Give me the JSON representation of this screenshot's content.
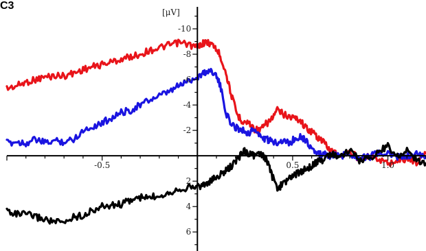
{
  "chart_data": {
    "type": "line",
    "panel_label": "C3",
    "ylabel": "[μV]",
    "xlabel": "",
    "xlim": [
      -1.0,
      1.2
    ],
    "ylim": [
      7.5,
      -12.0
    ],
    "y_axis_inverted": true,
    "x_ticks": [
      {
        "value": -0.5,
        "label": "-0.5"
      },
      {
        "value": 0.5,
        "label": "0.5"
      },
      {
        "value": 1.0,
        "label": "1.0"
      }
    ],
    "y_ticks": [
      {
        "value": -10,
        "label": "-10"
      },
      {
        "value": -8,
        "label": "-8"
      },
      {
        "value": -6,
        "label": "-6"
      },
      {
        "value": -4,
        "label": "-4"
      },
      {
        "value": -2,
        "label": "-2"
      },
      {
        "value": 2,
        "label": "2"
      },
      {
        "value": 4,
        "label": "4"
      },
      {
        "value": 6,
        "label": "6"
      }
    ],
    "grid": false,
    "series": [
      {
        "color": "#e8141a",
        "x": [
          -1.0,
          -0.95,
          -0.9,
          -0.85,
          -0.8,
          -0.75,
          -0.7,
          -0.65,
          -0.6,
          -0.55,
          -0.5,
          -0.45,
          -0.4,
          -0.35,
          -0.3,
          -0.25,
          -0.2,
          -0.15,
          -0.1,
          -0.05,
          0.0,
          0.03,
          0.06,
          0.09,
          0.12,
          0.15,
          0.18,
          0.21,
          0.24,
          0.27,
          0.3,
          0.33,
          0.36,
          0.39,
          0.42,
          0.45,
          0.48,
          0.51,
          0.54,
          0.57,
          0.6,
          0.63,
          0.66,
          0.7,
          0.75,
          0.8,
          0.85,
          0.9,
          0.95,
          1.0,
          1.05,
          1.1,
          1.15,
          1.2
        ],
        "values": [
          -5.3,
          -5.5,
          -5.8,
          -6.0,
          -6.2,
          -6.3,
          -6.3,
          -6.5,
          -6.8,
          -7.0,
          -7.2,
          -7.4,
          -7.6,
          -7.8,
          -8.0,
          -8.3,
          -8.5,
          -8.7,
          -8.9,
          -8.8,
          -8.5,
          -8.9,
          -8.9,
          -8.6,
          -7.9,
          -6.5,
          -4.7,
          -3.2,
          -2.7,
          -2.6,
          -2.1,
          -2.0,
          -2.5,
          -2.9,
          -3.6,
          -3.3,
          -3.1,
          -3.0,
          -2.8,
          -2.2,
          -1.9,
          -1.5,
          -1.1,
          -0.4,
          0.0,
          -0.3,
          0.2,
          -0.1,
          0.3,
          0.6,
          0.4,
          0.2,
          0.5,
          -0.2
        ]
      },
      {
        "color": "#1a14e0",
        "x": [
          -1.0,
          -0.95,
          -0.9,
          -0.85,
          -0.8,
          -0.75,
          -0.7,
          -0.65,
          -0.6,
          -0.55,
          -0.5,
          -0.45,
          -0.4,
          -0.35,
          -0.3,
          -0.25,
          -0.2,
          -0.15,
          -0.1,
          -0.05,
          0.0,
          0.03,
          0.06,
          0.09,
          0.12,
          0.15,
          0.18,
          0.21,
          0.24,
          0.27,
          0.3,
          0.33,
          0.36,
          0.39,
          0.42,
          0.45,
          0.48,
          0.51,
          0.54,
          0.57,
          0.6,
          0.63,
          0.66,
          0.7,
          0.75,
          0.8,
          0.85,
          0.9,
          0.95,
          1.0,
          1.05,
          1.1,
          1.15,
          1.2
        ],
        "values": [
          -1.0,
          -1.1,
          -1.0,
          -1.3,
          -1.0,
          -1.2,
          -1.1,
          -1.3,
          -2.0,
          -2.3,
          -2.6,
          -3.0,
          -3.4,
          -3.6,
          -4.0,
          -4.4,
          -4.7,
          -5.0,
          -5.5,
          -5.9,
          -6.2,
          -6.5,
          -6.7,
          -6.6,
          -5.5,
          -3.4,
          -2.4,
          -2.2,
          -2.0,
          -1.8,
          -2.1,
          -1.5,
          -1.3,
          -1.1,
          -1.1,
          -1.2,
          -1.0,
          -1.3,
          -1.6,
          -1.2,
          -0.6,
          -0.1,
          -0.1,
          0.0,
          0.0,
          -0.1,
          0.1,
          0.1,
          -0.2,
          -0.1,
          0.1,
          0.0,
          -0.1,
          0.1
        ]
      },
      {
        "color": "#000000",
        "x": [
          -1.0,
          -0.95,
          -0.9,
          -0.85,
          -0.8,
          -0.75,
          -0.7,
          -0.65,
          -0.6,
          -0.55,
          -0.5,
          -0.45,
          -0.4,
          -0.35,
          -0.3,
          -0.25,
          -0.2,
          -0.15,
          -0.1,
          -0.05,
          0.0,
          0.03,
          0.06,
          0.09,
          0.12,
          0.15,
          0.18,
          0.21,
          0.24,
          0.27,
          0.3,
          0.33,
          0.36,
          0.39,
          0.42,
          0.45,
          0.48,
          0.51,
          0.54,
          0.57,
          0.6,
          0.63,
          0.66,
          0.7,
          0.75,
          0.8,
          0.85,
          0.9,
          0.95,
          1.0,
          1.05,
          1.1,
          1.15,
          1.2
        ],
        "values": [
          4.3,
          4.6,
          4.6,
          4.8,
          5.0,
          5.2,
          5.3,
          4.8,
          4.7,
          4.3,
          4.0,
          3.9,
          3.8,
          3.5,
          3.3,
          3.3,
          3.1,
          2.9,
          2.6,
          2.5,
          2.4,
          2.3,
          2.1,
          1.8,
          1.5,
          1.2,
          0.8,
          0.3,
          -0.4,
          -0.2,
          0.0,
          -0.1,
          0.2,
          1.5,
          2.6,
          2.2,
          1.8,
          1.5,
          1.3,
          1.0,
          0.8,
          0.5,
          0.3,
          -0.2,
          0.1,
          -0.5,
          0.4,
          0.2,
          -0.3,
          -0.8,
          0.1,
          -0.5,
          0.3,
          0.6
        ]
      }
    ]
  }
}
